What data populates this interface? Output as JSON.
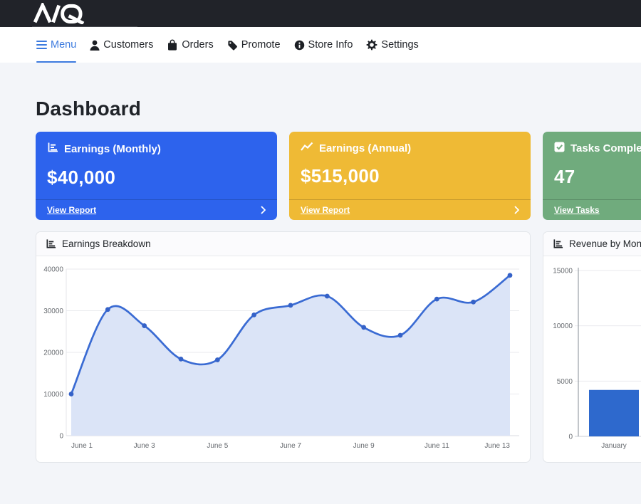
{
  "brand": {
    "logo_text": "MQ"
  },
  "nav": {
    "items": [
      {
        "label": "Menu",
        "icon": "hamburger-icon",
        "active": true
      },
      {
        "label": "Customers",
        "icon": "person-icon",
        "active": false
      },
      {
        "label": "Orders",
        "icon": "shopping-bag-icon",
        "active": false
      },
      {
        "label": "Promote",
        "icon": "tag-icon",
        "active": false
      },
      {
        "label": "Store Info",
        "icon": "info-circle-icon",
        "active": false
      },
      {
        "label": "Settings",
        "icon": "gear-icon",
        "active": false
      }
    ]
  },
  "page": {
    "title": "Dashboard",
    "background": "#f3f5f9"
  },
  "stat_cards": [
    {
      "title": "Earnings (Monthly)",
      "value": "$40,000",
      "footer_label": "View Report",
      "color": "#2d63ed",
      "icon": "bar-chart-icon"
    },
    {
      "title": "Earnings (Annual)",
      "value": "$515,000",
      "footer_label": "View Report",
      "color": "#efba35",
      "icon": "line-chart-icon"
    },
    {
      "title": "Tasks Completed",
      "value": "47",
      "footer_label": "View Tasks",
      "color": "#70ab7d",
      "icon": "check-square-icon"
    }
  ],
  "chart_data": [
    {
      "type": "line",
      "title": "Earnings Breakdown",
      "x": [
        "June 1",
        "June 2",
        "June 3",
        "June 4",
        "June 5",
        "June 6",
        "June 7",
        "June 8",
        "June 9",
        "June 10",
        "June 11",
        "June 12",
        "June 13"
      ],
      "values": [
        10000,
        30300,
        26400,
        18400,
        18200,
        29000,
        31300,
        33500,
        26000,
        24100,
        32800,
        32100,
        38500
      ],
      "x_tick_labels": [
        "June 1",
        "June 3",
        "June 5",
        "June 7",
        "June 9",
        "June 11",
        "June 13"
      ],
      "ylim": [
        0,
        40000
      ],
      "yticks": [
        0,
        10000,
        20000,
        30000,
        40000
      ],
      "line_color": "#3a6bd3",
      "point_color": "#3562c8",
      "fill_color": "#dbe4f7",
      "grid": true,
      "legend": false
    },
    {
      "type": "bar",
      "title": "Revenue by Month",
      "categories": [
        "January"
      ],
      "values": [
        4200
      ],
      "ylim": [
        0,
        15000
      ],
      "yticks": [
        0,
        5000,
        10000,
        15000
      ],
      "bar_color": "#2e69cd",
      "grid": true,
      "legend": false
    }
  ]
}
